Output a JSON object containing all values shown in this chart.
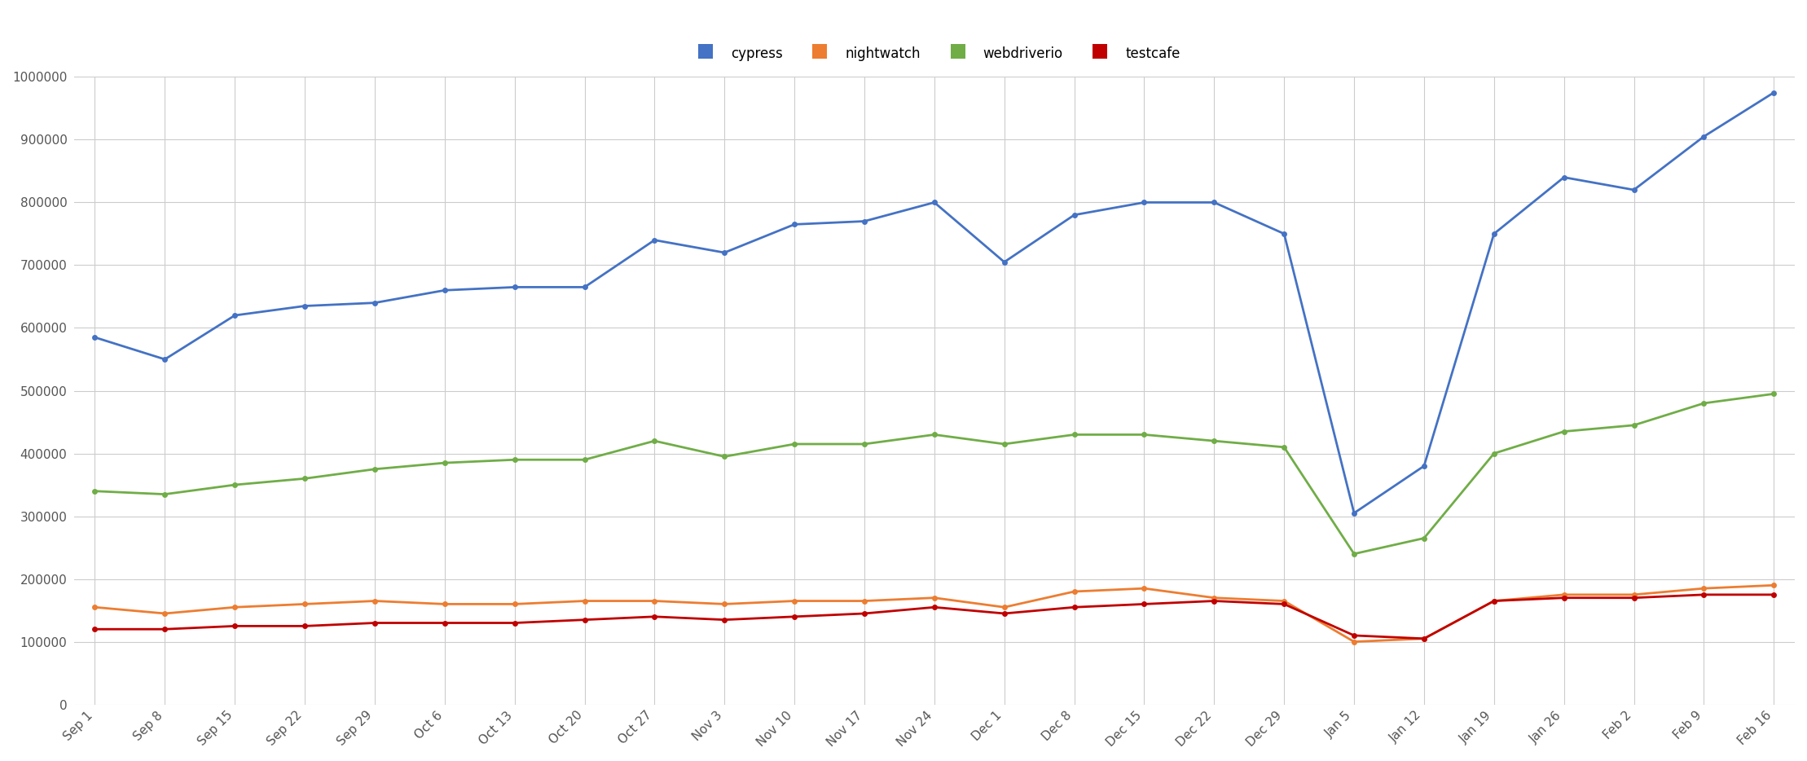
{
  "x_labels": [
    "Sep 1",
    "Sep 8",
    "Sep 15",
    "Sep 22",
    "Sep 29",
    "Oct 6",
    "Oct 13",
    "Oct 20",
    "Oct 27",
    "Nov 3",
    "Nov 10",
    "Nov 17",
    "Nov 24",
    "Dec 1",
    "Dec 8",
    "Dec 15",
    "Dec 22",
    "Dec 29",
    "Jan 5",
    "Jan 12",
    "Jan 19",
    "Jan 26",
    "Feb 2",
    "Feb 9",
    "Feb 16"
  ],
  "cypress": [
    585000,
    550000,
    620000,
    635000,
    640000,
    660000,
    665000,
    665000,
    740000,
    720000,
    765000,
    770000,
    800000,
    705000,
    780000,
    800000,
    800000,
    750000,
    305000,
    380000,
    750000,
    840000,
    820000,
    905000,
    975000
  ],
  "webdriverio": [
    340000,
    335000,
    350000,
    360000,
    375000,
    385000,
    390000,
    390000,
    420000,
    395000,
    415000,
    415000,
    430000,
    415000,
    430000,
    430000,
    420000,
    410000,
    240000,
    265000,
    400000,
    435000,
    445000,
    480000,
    495000
  ],
  "nightwatch": [
    155000,
    145000,
    155000,
    160000,
    165000,
    160000,
    160000,
    165000,
    165000,
    160000,
    165000,
    165000,
    170000,
    155000,
    180000,
    185000,
    170000,
    165000,
    100000,
    105000,
    165000,
    175000,
    175000,
    185000,
    190000
  ],
  "testcafe": [
    120000,
    120000,
    125000,
    125000,
    130000,
    130000,
    130000,
    135000,
    140000,
    135000,
    140000,
    145000,
    155000,
    145000,
    155000,
    160000,
    165000,
    160000,
    110000,
    105000,
    165000,
    170000,
    170000,
    175000,
    175000
  ],
  "colors": {
    "cypress": "#4472c4",
    "webdriverio": "#70ad47",
    "nightwatch": "#ed7d31",
    "testcafe": "#c00000"
  },
  "legend_order": [
    "cypress",
    "nightwatch",
    "webdriverio",
    "testcafe"
  ],
  "plot_order": [
    "cypress",
    "webdriverio",
    "nightwatch",
    "testcafe"
  ],
  "ylim": [
    0,
    1000000
  ],
  "yticks": [
    0,
    100000,
    200000,
    300000,
    400000,
    500000,
    600000,
    700000,
    800000,
    900000,
    1000000
  ],
  "background_color": "#ffffff",
  "grid_color": "#cccccc",
  "marker_size": 5,
  "linewidth": 2.0
}
